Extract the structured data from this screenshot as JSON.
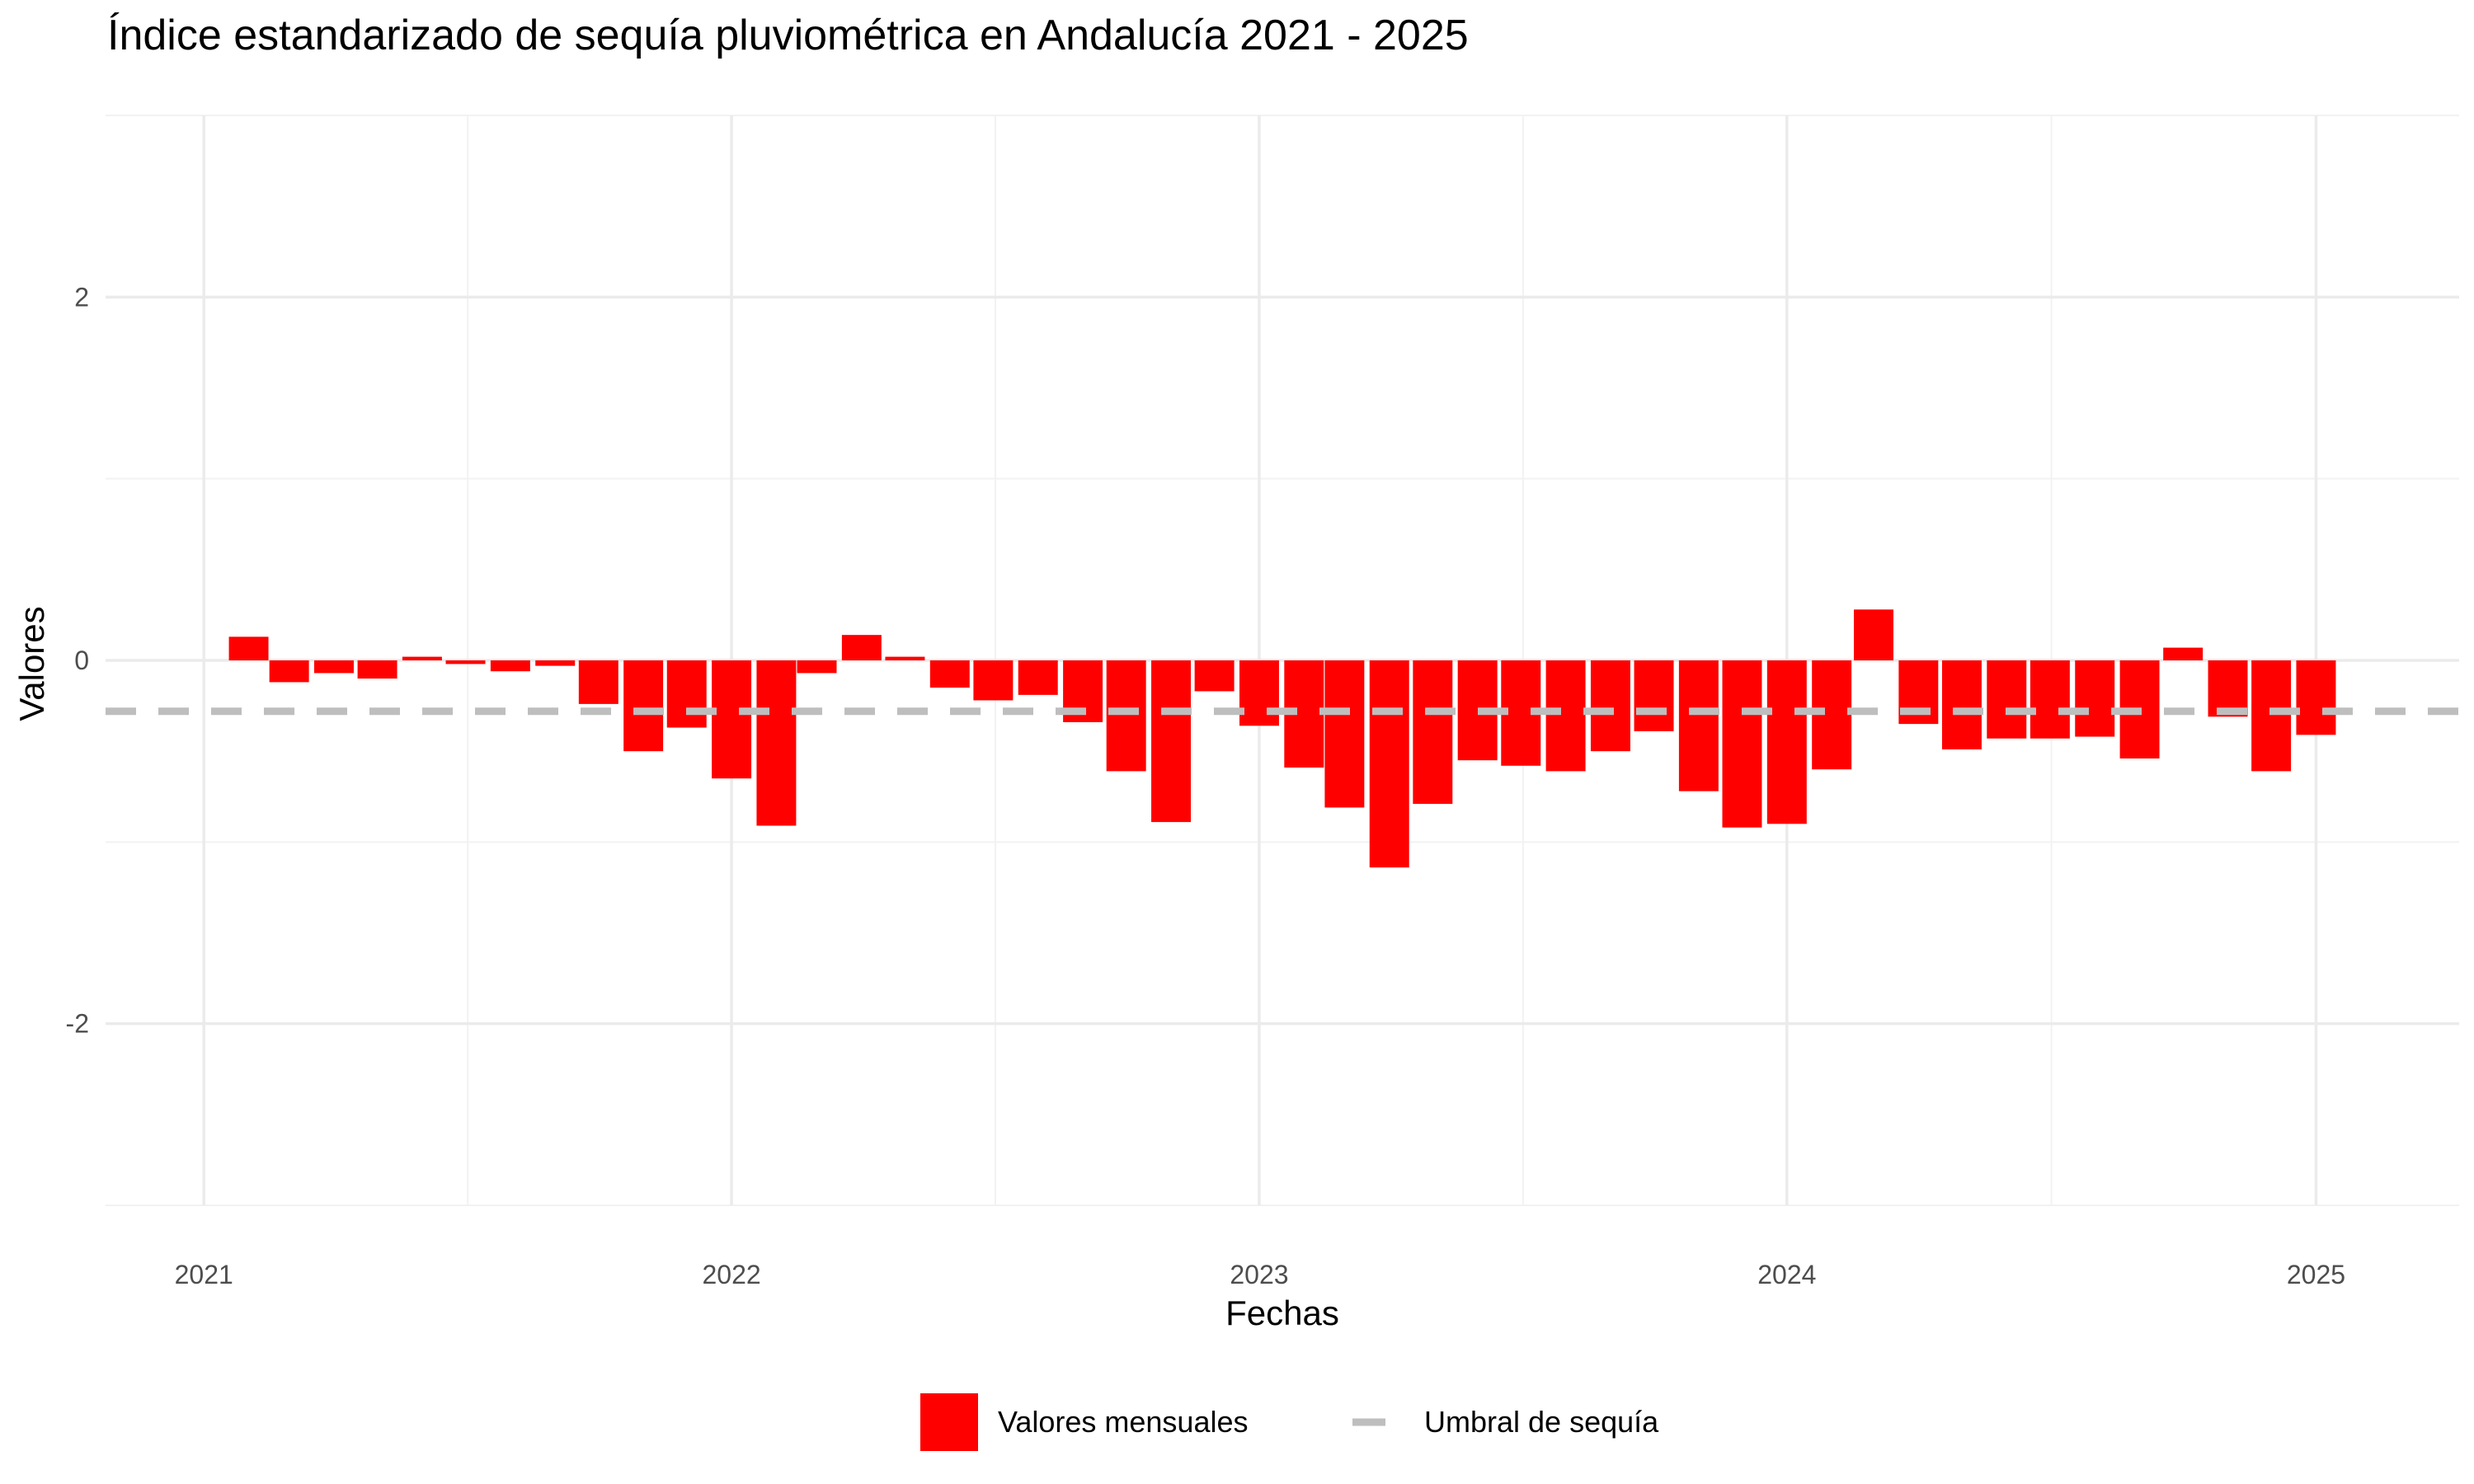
{
  "chart_data": {
    "type": "bar",
    "title": "Índice estandarizado de sequía pluviométrica en Andalucía 2021 - 2025",
    "xlabel": "Fechas",
    "ylabel": "Valores",
    "ylim": [
      -3,
      3
    ],
    "xlim": [
      "2020-10-25",
      "2025-04-10"
    ],
    "y_ticks": [
      -2,
      0,
      2
    ],
    "x_ticks": [
      "2021-01-01",
      "2022-01-01",
      "2023-01-01",
      "2024-01-01",
      "2025-01-01"
    ],
    "x_tick_labels": [
      "2021",
      "2022",
      "2023",
      "2024",
      "2025"
    ],
    "grid": true,
    "legend_position": "bottom",
    "threshold": {
      "name": "Umbral de sequía",
      "value": -0.28,
      "color": "#bebebe",
      "style": "dashed"
    },
    "series": [
      {
        "name": "Valores mensuales",
        "color": "#ff0000",
        "dates": [
          "2021-02",
          "2021-03",
          "2021-04",
          "2021-05",
          "2021-06",
          "2021-07",
          "2021-08",
          "2021-09",
          "2021-10",
          "2021-11",
          "2021-12",
          "2022-01",
          "2022-02",
          "2022-03",
          "2022-04",
          "2022-05",
          "2022-06",
          "2022-07",
          "2022-08",
          "2022-09",
          "2022-10",
          "2022-11",
          "2022-12",
          "2023-01",
          "2023-02",
          "2023-03",
          "2023-04",
          "2023-05",
          "2023-06",
          "2023-07",
          "2023-08",
          "2023-09",
          "2023-10",
          "2023-11",
          "2023-12",
          "2024-01",
          "2024-02",
          "2024-03",
          "2024-04",
          "2024-05",
          "2024-06",
          "2024-07",
          "2024-08",
          "2024-09",
          "2024-10",
          "2024-11",
          "2024-12",
          "2025-01"
        ],
        "values": [
          0.13,
          -0.12,
          -0.07,
          -0.1,
          0.02,
          -0.02,
          -0.06,
          -0.03,
          -0.24,
          -0.5,
          -0.37,
          -0.65,
          -0.91,
          -0.07,
          0.14,
          0.02,
          -0.15,
          -0.22,
          -0.19,
          -0.34,
          -0.61,
          -0.89,
          -0.17,
          -0.36,
          -0.59,
          -0.81,
          -1.14,
          -0.79,
          -0.55,
          -0.58,
          -0.61,
          -0.5,
          -0.39,
          -0.72,
          -0.92,
          -0.9,
          -0.6,
          0.28,
          -0.35,
          -0.49,
          -0.43,
          -0.43,
          -0.42,
          -0.54,
          0.07,
          -0.31,
          -0.61,
          -0.41
        ]
      }
    ]
  },
  "legend": {
    "bars_label": "Valores mensuales",
    "threshold_label": "Umbral de sequía"
  }
}
